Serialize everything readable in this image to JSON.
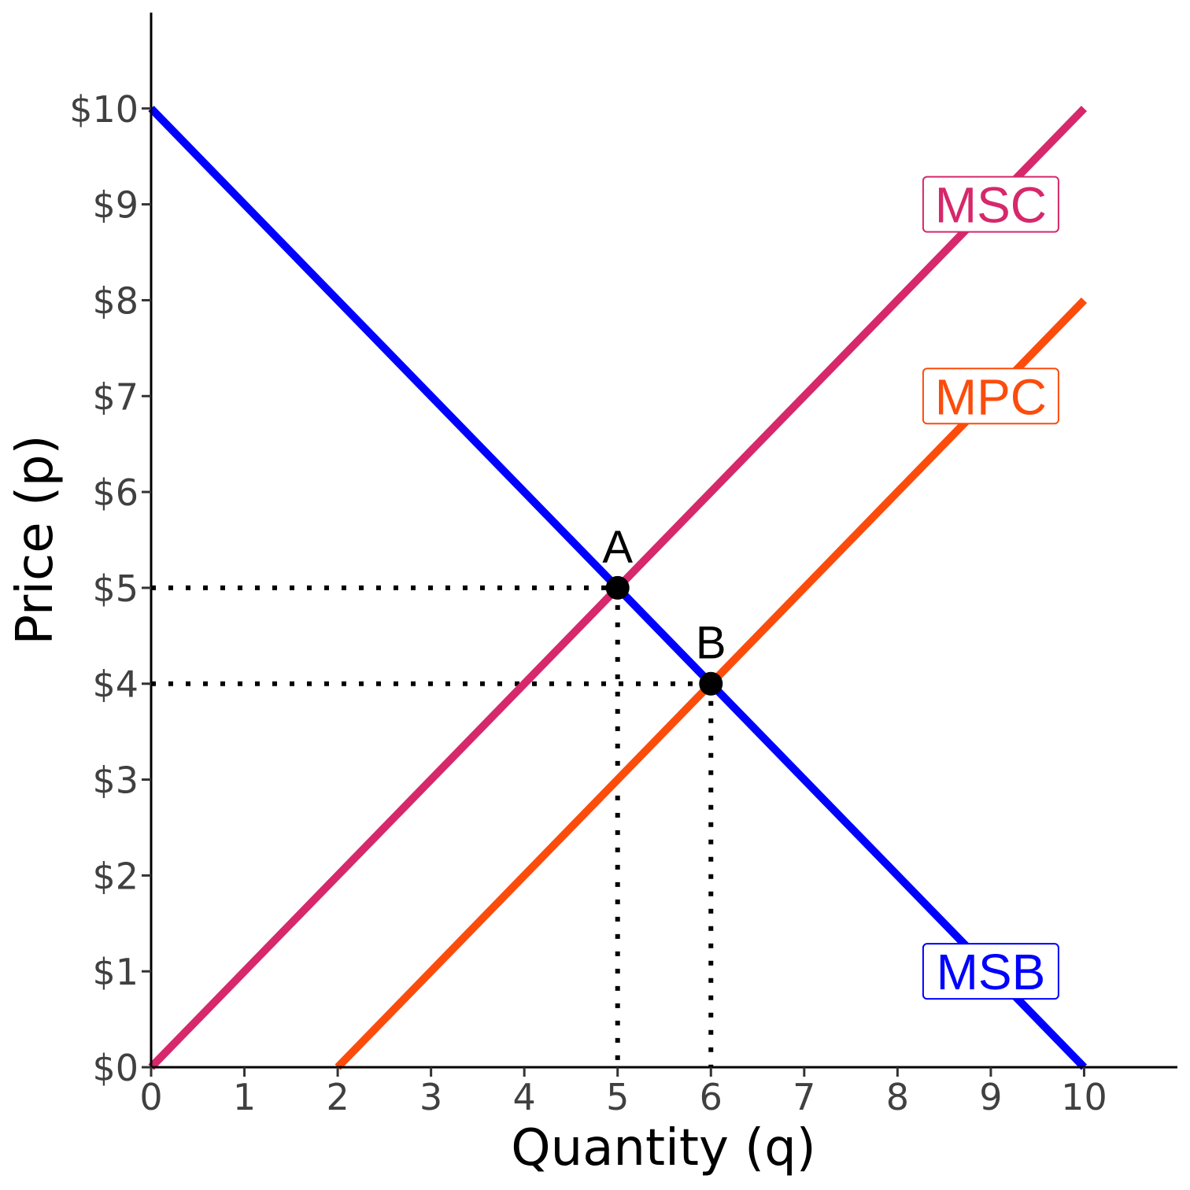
{
  "chart_data": {
    "type": "line",
    "title": "",
    "xlabel": "Quantity (q)",
    "ylabel": "Price (p)",
    "xlim": [
      0,
      11
    ],
    "ylim": [
      0,
      11
    ],
    "x_ticks": [
      0,
      1,
      2,
      3,
      4,
      5,
      6,
      7,
      8,
      9,
      10
    ],
    "x_tick_labels": [
      "0",
      "1",
      "2",
      "3",
      "4",
      "5",
      "6",
      "7",
      "8",
      "9",
      "10"
    ],
    "y_ticks": [
      0,
      1,
      2,
      3,
      4,
      5,
      6,
      7,
      8,
      9,
      10
    ],
    "y_tick_labels": [
      "$0",
      "$1",
      "$2",
      "$3",
      "$4",
      "$5",
      "$6",
      "$7",
      "$8",
      "$9",
      "$10"
    ],
    "grid": false,
    "series": [
      {
        "name": "MSB",
        "color": "#0000ff",
        "x": [
          0,
          10
        ],
        "y": [
          10,
          0
        ],
        "label_at": [
          9,
          1
        ]
      },
      {
        "name": "MSC",
        "color": "#d6286b",
        "x": [
          0,
          10
        ],
        "y": [
          0,
          10
        ],
        "label_at": [
          9,
          9
        ]
      },
      {
        "name": "MPC",
        "color": "#fc4c0c",
        "x": [
          2,
          10
        ],
        "y": [
          0,
          8
        ],
        "label_at": [
          9,
          7
        ]
      }
    ],
    "points": [
      {
        "label": "A",
        "x": 5,
        "y": 5
      },
      {
        "label": "B",
        "x": 6,
        "y": 4
      }
    ]
  }
}
